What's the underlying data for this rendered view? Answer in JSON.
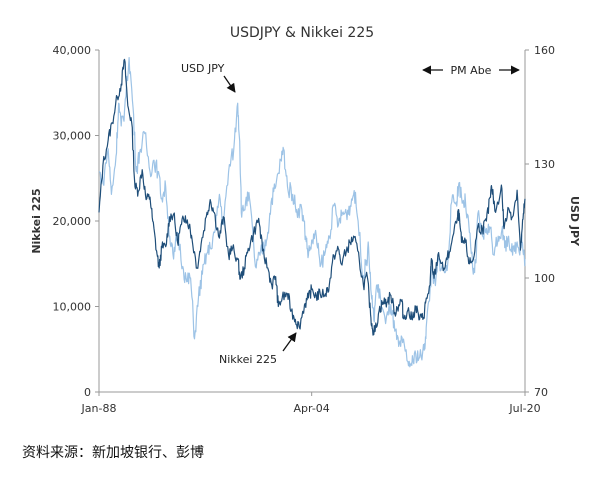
{
  "chart_data": {
    "type": "line",
    "title": "USDJPY & Nikkei 225",
    "x_ticks": [
      "Jan-88",
      "Apr-04",
      "Jul-20"
    ],
    "x_range": [
      "1988-01",
      "2020-07"
    ],
    "left_axis": {
      "label": "Nikkei 225",
      "range": [
        0,
        40000
      ],
      "ticks": [
        "0",
        "10,000",
        "20,000",
        "30,000",
        "40,000"
      ]
    },
    "right_axis": {
      "label": "USD JPY",
      "range": [
        70,
        160
      ],
      "ticks": [
        "70",
        "100",
        "130",
        "160"
      ]
    },
    "series": [
      {
        "name": "Nikkei 225",
        "axis": "left",
        "color": "#1f4e79",
        "points": [
          [
            1988.0,
            21000
          ],
          [
            1988.3,
            26500
          ],
          [
            1988.7,
            29500
          ],
          [
            1989.0,
            31500
          ],
          [
            1989.4,
            34500
          ],
          [
            1989.7,
            36000
          ],
          [
            1989.95,
            38900
          ],
          [
            1990.2,
            33500
          ],
          [
            1990.5,
            31500
          ],
          [
            1990.75,
            24000
          ],
          [
            1991.0,
            23500
          ],
          [
            1991.3,
            26000
          ],
          [
            1991.6,
            22500
          ],
          [
            1991.9,
            22800
          ],
          [
            1992.1,
            20000
          ],
          [
            1992.4,
            16500
          ],
          [
            1992.6,
            14500
          ],
          [
            1992.8,
            16900
          ],
          [
            1993.1,
            17000
          ],
          [
            1993.4,
            20500
          ],
          [
            1993.7,
            20800
          ],
          [
            1994.0,
            17500
          ],
          [
            1994.3,
            19600
          ],
          [
            1994.6,
            20600
          ],
          [
            1994.9,
            19500
          ],
          [
            1995.1,
            18000
          ],
          [
            1995.5,
            14500
          ],
          [
            1995.8,
            17300
          ],
          [
            1996.2,
            20500
          ],
          [
            1996.5,
            22500
          ],
          [
            1996.8,
            21000
          ],
          [
            1997.2,
            18000
          ],
          [
            1997.5,
            20500
          ],
          [
            1997.9,
            16000
          ],
          [
            1998.2,
            16800
          ],
          [
            1998.6,
            15500
          ],
          [
            1998.8,
            13200
          ],
          [
            1999.1,
            14500
          ],
          [
            1999.4,
            16800
          ],
          [
            1999.8,
            18500
          ],
          [
            2000.2,
            20300
          ],
          [
            2000.5,
            16500
          ],
          [
            2000.9,
            14500
          ],
          [
            2001.2,
            12500
          ],
          [
            2001.5,
            13500
          ],
          [
            2001.7,
            10000
          ],
          [
            2002.0,
            11000
          ],
          [
            2002.4,
            11500
          ],
          [
            2002.7,
            9500
          ],
          [
            2003.0,
            8500
          ],
          [
            2003.3,
            7600
          ],
          [
            2003.7,
            10200
          ],
          [
            2004.0,
            11000
          ],
          [
            2004.25,
            12000
          ],
          [
            2004.6,
            11200
          ],
          [
            2004.9,
            11500
          ],
          [
            2005.3,
            11500
          ],
          [
            2005.6,
            12500
          ],
          [
            2005.95,
            16000
          ],
          [
            2006.3,
            16700
          ],
          [
            2006.5,
            15000
          ],
          [
            2006.9,
            16500
          ],
          [
            2007.2,
            17500
          ],
          [
            2007.5,
            18100
          ],
          [
            2007.9,
            15300
          ],
          [
            2008.2,
            12500
          ],
          [
            2008.5,
            13500
          ],
          [
            2008.75,
            9000
          ],
          [
            2008.9,
            7400
          ],
          [
            2009.1,
            7100
          ],
          [
            2009.4,
            9500
          ],
          [
            2009.7,
            10500
          ],
          [
            2010.0,
            10500
          ],
          [
            2010.3,
            11300
          ],
          [
            2010.6,
            9300
          ],
          [
            2010.9,
            10200
          ],
          [
            2011.15,
            10800
          ],
          [
            2011.25,
            8600
          ],
          [
            2011.6,
            9600
          ],
          [
            2011.9,
            8500
          ],
          [
            2012.2,
            10000
          ],
          [
            2012.5,
            8500
          ],
          [
            2012.8,
            8700
          ],
          [
            2012.95,
            10400
          ],
          [
            2013.3,
            12500
          ],
          [
            2013.4,
            15600
          ],
          [
            2013.6,
            13300
          ],
          [
            2013.95,
            16300
          ],
          [
            2014.3,
            14200
          ],
          [
            2014.6,
            15500
          ],
          [
            2014.95,
            17500
          ],
          [
            2015.4,
            20500
          ],
          [
            2015.5,
            20800
          ],
          [
            2015.7,
            17500
          ],
          [
            2016.0,
            17500
          ],
          [
            2016.3,
            15000
          ],
          [
            2016.6,
            15500
          ],
          [
            2016.95,
            19400
          ],
          [
            2017.3,
            19000
          ],
          [
            2017.6,
            20000
          ],
          [
            2017.9,
            22800
          ],
          [
            2018.0,
            24000
          ],
          [
            2018.3,
            21000
          ],
          [
            2018.75,
            24200
          ],
          [
            2018.95,
            19100
          ],
          [
            2019.3,
            21500
          ],
          [
            2019.6,
            20500
          ],
          [
            2019.95,
            23600
          ],
          [
            2020.2,
            16600
          ],
          [
            2020.4,
            20200
          ],
          [
            2020.55,
            22600
          ]
        ]
      },
      {
        "name": "USD JPY",
        "axis": "right",
        "color": "#9dc3e6",
        "points": [
          [
            1988.0,
            128
          ],
          [
            1988.3,
            125
          ],
          [
            1988.7,
            134
          ],
          [
            1988.95,
            122
          ],
          [
            1989.3,
            132
          ],
          [
            1989.5,
            146
          ],
          [
            1989.7,
            140
          ],
          [
            1989.95,
            144
          ],
          [
            1990.3,
            158
          ],
          [
            1990.6,
            145
          ],
          [
            1990.85,
            128
          ],
          [
            1991.1,
            133
          ],
          [
            1991.5,
            138
          ],
          [
            1991.9,
            128
          ],
          [
            1992.2,
            131
          ],
          [
            1992.5,
            128
          ],
          [
            1992.8,
            121
          ],
          [
            1993.1,
            124
          ],
          [
            1993.4,
            111
          ],
          [
            1993.7,
            105
          ],
          [
            1994.0,
            112
          ],
          [
            1994.4,
            103
          ],
          [
            1994.7,
            99
          ],
          [
            1995.0,
            100
          ],
          [
            1995.3,
            84
          ],
          [
            1995.6,
            95
          ],
          [
            1995.9,
            101
          ],
          [
            1996.2,
            106
          ],
          [
            1996.5,
            108
          ],
          [
            1996.9,
            113
          ],
          [
            1997.2,
            122
          ],
          [
            1997.5,
            114
          ],
          [
            1997.9,
            128
          ],
          [
            1998.3,
            134
          ],
          [
            1998.6,
            146
          ],
          [
            1998.75,
            136
          ],
          [
            1998.9,
            116
          ],
          [
            1999.2,
            120
          ],
          [
            1999.5,
            121
          ],
          [
            1999.95,
            103
          ],
          [
            2000.3,
            106
          ],
          [
            2000.6,
            108
          ],
          [
            2000.9,
            112
          ],
          [
            2001.2,
            121
          ],
          [
            2001.5,
            124
          ],
          [
            2001.9,
            131
          ],
          [
            2002.1,
            134
          ],
          [
            2002.4,
            124
          ],
          [
            2002.8,
            122
          ],
          [
            2003.1,
            118
          ],
          [
            2003.5,
            118
          ],
          [
            2003.8,
            111
          ],
          [
            2004.0,
            106
          ],
          [
            2004.3,
            110
          ],
          [
            2004.6,
            111
          ],
          [
            2004.9,
            103
          ],
          [
            2005.3,
            107
          ],
          [
            2005.6,
            111
          ],
          [
            2005.95,
            119
          ],
          [
            2006.3,
            114
          ],
          [
            2006.6,
            117
          ],
          [
            2006.9,
            117
          ],
          [
            2007.2,
            119
          ],
          [
            2007.5,
            123
          ],
          [
            2007.8,
            115
          ],
          [
            2008.2,
            100
          ],
          [
            2008.4,
            104
          ],
          [
            2008.6,
            108
          ],
          [
            2008.8,
            96
          ],
          [
            2009.0,
            89
          ],
          [
            2009.2,
            98
          ],
          [
            2009.5,
            95
          ],
          [
            2009.9,
            88
          ],
          [
            2010.3,
            93
          ],
          [
            2010.6,
            86
          ],
          [
            2010.9,
            82
          ],
          [
            2011.2,
            83
          ],
          [
            2011.6,
            78
          ],
          [
            2011.9,
            77
          ],
          [
            2012.2,
            80
          ],
          [
            2012.5,
            79
          ],
          [
            2012.85,
            81
          ],
          [
            2013.0,
            87
          ],
          [
            2013.3,
            97
          ],
          [
            2013.4,
            102
          ],
          [
            2013.7,
            98
          ],
          [
            2013.95,
            105
          ],
          [
            2014.3,
            102
          ],
          [
            2014.6,
            102
          ],
          [
            2014.95,
            120
          ],
          [
            2015.3,
            120
          ],
          [
            2015.5,
            125
          ],
          [
            2015.8,
            120
          ],
          [
            2016.0,
            120
          ],
          [
            2016.3,
            112
          ],
          [
            2016.6,
            101
          ],
          [
            2016.8,
            104
          ],
          [
            2016.95,
            117
          ],
          [
            2017.3,
            111
          ],
          [
            2017.6,
            113
          ],
          [
            2017.9,
            113
          ],
          [
            2018.2,
            106
          ],
          [
            2018.5,
            111
          ],
          [
            2018.8,
            113
          ],
          [
            2019.0,
            108
          ],
          [
            2019.3,
            111
          ],
          [
            2019.6,
            106
          ],
          [
            2019.9,
            109
          ],
          [
            2020.2,
            108
          ],
          [
            2020.3,
            111
          ],
          [
            2020.4,
            107
          ],
          [
            2020.55,
            105
          ]
        ]
      }
    ],
    "annotations": [
      "USD JPY",
      "Nikkei 225",
      "PM Abe"
    ]
  },
  "source_note": "资料来源：新加坡银行、彭博"
}
